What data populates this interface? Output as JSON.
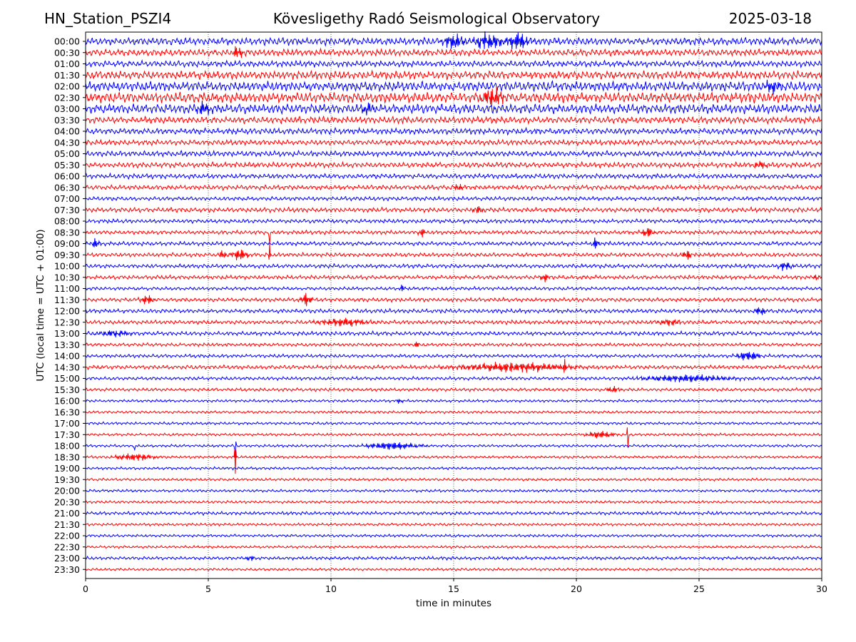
{
  "header": {
    "station": "HN_Station_PSZI4",
    "title": "Kövesligethy Radó Seismological Observatory",
    "date": "2025-03-18"
  },
  "chart_data": {
    "type": "line",
    "subtype": "helicorder",
    "xlabel": "time in minutes",
    "ylabel": "UTC (local time = UTC + 01:00)",
    "xlim": [
      0,
      30
    ],
    "xticks": [
      0,
      5,
      10,
      15,
      20,
      25,
      30
    ],
    "grid": "vertical dotted at x ticks",
    "colors": [
      "#0000ff",
      "#ff0000"
    ],
    "rows": [
      {
        "label": "00:00",
        "noise": 0.55,
        "events": [
          {
            "t": 15.0,
            "amp": 1.3,
            "dur": 0.8
          },
          {
            "t": 16.4,
            "amp": 1.5,
            "dur": 1.0
          },
          {
            "t": 17.6,
            "amp": 1.6,
            "dur": 0.8
          }
        ]
      },
      {
        "label": "00:30",
        "noise": 0.5,
        "events": [
          {
            "t": 6.2,
            "amp": 1.0,
            "dur": 0.4
          }
        ]
      },
      {
        "label": "01:00",
        "noise": 0.45,
        "events": []
      },
      {
        "label": "01:30",
        "noise": 0.6,
        "events": []
      },
      {
        "label": "02:00",
        "noise": 0.7,
        "events": [
          {
            "t": 28.0,
            "amp": 1.0,
            "dur": 0.6
          }
        ]
      },
      {
        "label": "02:30",
        "noise": 0.75,
        "events": [
          {
            "t": 16.6,
            "amp": 1.6,
            "dur": 0.8
          }
        ]
      },
      {
        "label": "03:00",
        "noise": 0.7,
        "events": [
          {
            "t": 4.8,
            "amp": 1.4,
            "dur": 0.5
          },
          {
            "t": 11.5,
            "amp": 1.0,
            "dur": 0.4
          }
        ]
      },
      {
        "label": "03:30",
        "noise": 0.5,
        "events": []
      },
      {
        "label": "04:00",
        "noise": 0.45,
        "events": []
      },
      {
        "label": "04:30",
        "noise": 0.4,
        "events": []
      },
      {
        "label": "05:00",
        "noise": 0.4,
        "events": []
      },
      {
        "label": "05:30",
        "noise": 0.4,
        "events": [
          {
            "t": 27.5,
            "amp": 0.7,
            "dur": 0.5
          }
        ]
      },
      {
        "label": "06:00",
        "noise": 0.35,
        "events": []
      },
      {
        "label": "06:30",
        "noise": 0.35,
        "events": [
          {
            "t": 15.2,
            "amp": 0.8,
            "dur": 0.3
          }
        ]
      },
      {
        "label": "07:00",
        "noise": 0.3,
        "events": []
      },
      {
        "label": "07:30",
        "noise": 0.35,
        "events": [
          {
            "t": 16.0,
            "amp": 0.6,
            "dur": 0.4
          }
        ]
      },
      {
        "label": "08:00",
        "noise": 0.3,
        "events": []
      },
      {
        "label": "08:30",
        "noise": 0.3,
        "events": [
          {
            "t": 7.5,
            "amp": 2.6,
            "dur": 0.05
          },
          {
            "t": 13.7,
            "amp": 1.0,
            "dur": 0.2
          },
          {
            "t": 22.9,
            "amp": 1.0,
            "dur": 0.4
          }
        ]
      },
      {
        "label": "09:00",
        "noise": 0.3,
        "events": [
          {
            "t": 0.4,
            "amp": 0.9,
            "dur": 0.3
          },
          {
            "t": 20.8,
            "amp": 1.2,
            "dur": 0.2
          }
        ]
      },
      {
        "label": "09:30",
        "noise": 0.3,
        "events": [
          {
            "t": 5.6,
            "amp": 1.2,
            "dur": 0.2
          },
          {
            "t": 6.3,
            "amp": 1.1,
            "dur": 0.6
          },
          {
            "t": 7.5,
            "amp": 2.5,
            "dur": 0.05
          },
          {
            "t": 24.5,
            "amp": 1.0,
            "dur": 0.3
          }
        ]
      },
      {
        "label": "10:00",
        "noise": 0.3,
        "events": [
          {
            "t": 28.5,
            "amp": 0.8,
            "dur": 0.5
          }
        ]
      },
      {
        "label": "10:30",
        "noise": 0.3,
        "events": [
          {
            "t": 18.7,
            "amp": 0.8,
            "dur": 0.3
          },
          {
            "t": 29.8,
            "amp": 0.7,
            "dur": 0.2
          }
        ]
      },
      {
        "label": "11:00",
        "noise": 0.25,
        "events": [
          {
            "t": 12.9,
            "amp": 0.8,
            "dur": 0.1
          }
        ]
      },
      {
        "label": "11:30",
        "noise": 0.3,
        "events": [
          {
            "t": 2.5,
            "amp": 0.8,
            "dur": 0.5
          },
          {
            "t": 9.0,
            "amp": 1.2,
            "dur": 0.4
          }
        ]
      },
      {
        "label": "12:00",
        "noise": 0.3,
        "events": [
          {
            "t": 27.5,
            "amp": 0.8,
            "dur": 0.4
          }
        ]
      },
      {
        "label": "12:30",
        "noise": 0.3,
        "events": [
          {
            "t": 10.5,
            "amp": 0.7,
            "dur": 2.0
          },
          {
            "t": 23.8,
            "amp": 0.6,
            "dur": 0.8
          }
        ]
      },
      {
        "label": "13:00",
        "noise": 0.3,
        "events": [
          {
            "t": 1.2,
            "amp": 0.6,
            "dur": 1.2
          }
        ]
      },
      {
        "label": "13:30",
        "noise": 0.25,
        "events": [
          {
            "t": 13.5,
            "amp": 0.6,
            "dur": 0.2
          }
        ]
      },
      {
        "label": "14:00",
        "noise": 0.25,
        "events": [
          {
            "t": 27.0,
            "amp": 0.9,
            "dur": 0.8
          }
        ]
      },
      {
        "label": "14:30",
        "noise": 0.3,
        "events": [
          {
            "t": 17.5,
            "amp": 0.8,
            "dur": 4.5
          },
          {
            "t": 19.5,
            "amp": 1.5,
            "dur": 0.1
          }
        ]
      },
      {
        "label": "15:00",
        "noise": 0.25,
        "events": [
          {
            "t": 24.5,
            "amp": 0.6,
            "dur": 3.5
          }
        ]
      },
      {
        "label": "15:30",
        "noise": 0.25,
        "events": [
          {
            "t": 21.5,
            "amp": 0.6,
            "dur": 0.5
          }
        ]
      },
      {
        "label": "16:00",
        "noise": 0.2,
        "events": [
          {
            "t": 12.8,
            "amp": 0.5,
            "dur": 0.2
          }
        ]
      },
      {
        "label": "16:30",
        "noise": 0.2,
        "events": []
      },
      {
        "label": "17:00",
        "noise": 0.2,
        "events": []
      },
      {
        "label": "17:30",
        "noise": 0.2,
        "events": [
          {
            "t": 21.0,
            "amp": 0.7,
            "dur": 1.0
          },
          {
            "t": 22.1,
            "amp": 3.0,
            "dur": 0.05
          }
        ]
      },
      {
        "label": "18:00",
        "noise": 0.2,
        "events": [
          {
            "t": 2.0,
            "amp": 1.2,
            "dur": 0.05
          },
          {
            "t": 6.1,
            "amp": 2.2,
            "dur": 0.05
          },
          {
            "t": 12.5,
            "amp": 0.7,
            "dur": 2.0
          }
        ]
      },
      {
        "label": "18:30",
        "noise": 0.2,
        "events": [
          {
            "t": 2.0,
            "amp": 0.6,
            "dur": 1.5
          },
          {
            "t": 6.1,
            "amp": 4.0,
            "dur": 0.05
          }
        ]
      },
      {
        "label": "19:00",
        "noise": 0.2,
        "events": []
      },
      {
        "label": "19:30",
        "noise": 0.2,
        "events": []
      },
      {
        "label": "20:00",
        "noise": 0.2,
        "events": []
      },
      {
        "label": "20:30",
        "noise": 0.2,
        "events": []
      },
      {
        "label": "21:00",
        "noise": 0.25,
        "events": []
      },
      {
        "label": "21:30",
        "noise": 0.2,
        "events": []
      },
      {
        "label": "22:00",
        "noise": 0.2,
        "events": []
      },
      {
        "label": "22:30",
        "noise": 0.2,
        "events": []
      },
      {
        "label": "23:00",
        "noise": 0.25,
        "events": [
          {
            "t": 6.7,
            "amp": 0.5,
            "dur": 0.3
          }
        ]
      },
      {
        "label": "23:30",
        "noise": 0.2,
        "events": []
      }
    ]
  }
}
